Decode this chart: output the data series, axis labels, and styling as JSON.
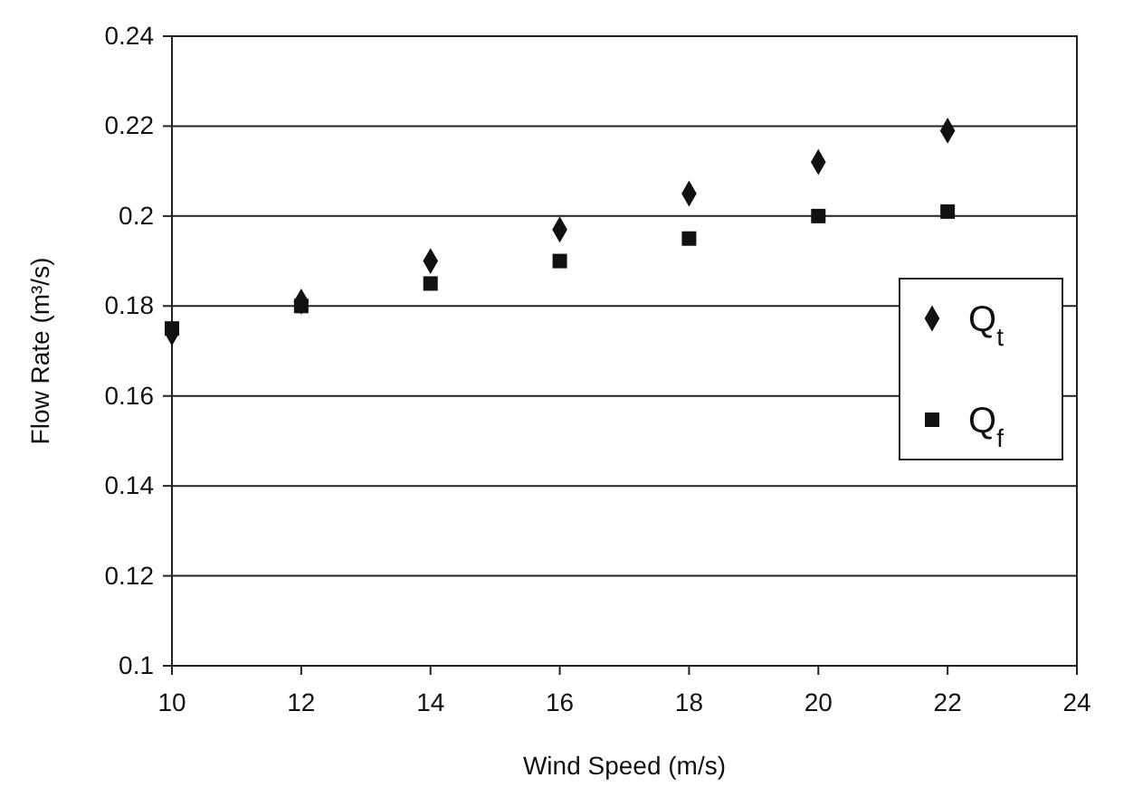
{
  "chart_data": {
    "type": "scatter",
    "xlabel": "Wind Speed (m/s)",
    "ylabel": "Flow Rate (m³/s)",
    "x": [
      10,
      12,
      14,
      16,
      18,
      20,
      22
    ],
    "series": [
      {
        "name": "Q$_{t}$",
        "color": "#111111",
        "marker": "diamond",
        "values": [
          0.174,
          0.181,
          0.19,
          0.197,
          0.205,
          0.212,
          0.219
        ]
      },
      {
        "name": "Q$_{f}$",
        "color": "#111111",
        "marker": "square",
        "values": [
          0.175,
          0.18,
          0.185,
          0.19,
          0.195,
          0.2,
          0.201
        ]
      }
    ],
    "xlim": [
      10,
      24
    ],
    "xticks": [
      10,
      12,
      14,
      16,
      18,
      20,
      22,
      24
    ],
    "ylim": [
      0.1,
      0.24
    ],
    "yticks": [
      0.1,
      0.12,
      0.14,
      0.16,
      0.18,
      0.2,
      0.22,
      0.24
    ],
    "grid": "y",
    "legend": "right"
  }
}
